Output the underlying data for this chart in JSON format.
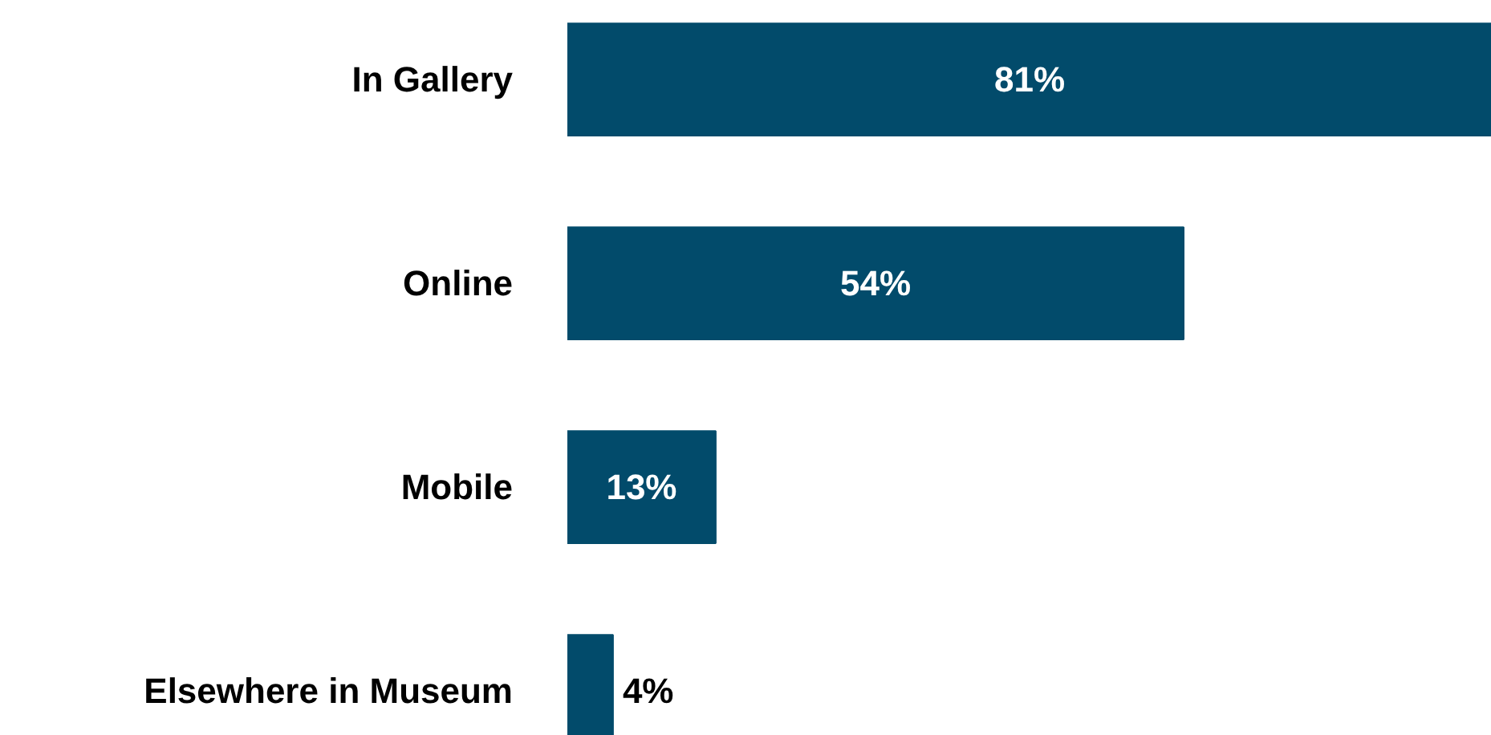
{
  "chart_data": {
    "type": "bar",
    "orientation": "horizontal",
    "categories": [
      "In Gallery",
      "Online",
      "Mobile",
      "Elsewhere in Museum"
    ],
    "values": [
      81,
      54,
      13,
      4
    ],
    "value_labels": [
      "81%",
      "54%",
      "13%",
      "4%"
    ],
    "color": "#024b6b",
    "grid": false
  }
}
